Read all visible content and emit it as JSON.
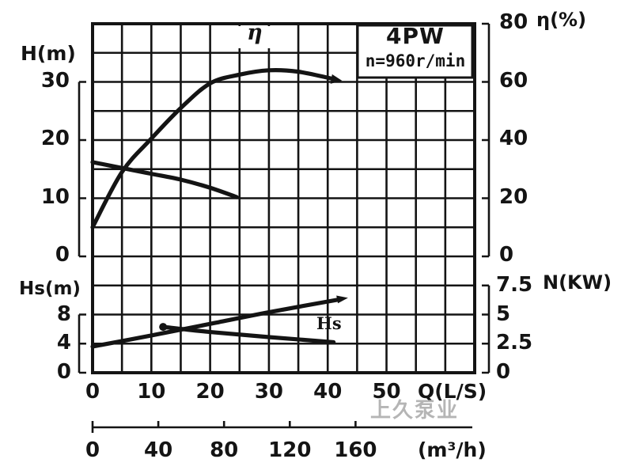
{
  "watermark": "上久泵业",
  "chart_data": {
    "type": "line",
    "title_box": {
      "model": "4PW",
      "speed": "n=960r/min"
    },
    "x_axis": {
      "label": "Q(L/S)",
      "min": 0,
      "max": 65,
      "ticks": [
        0,
        10,
        20,
        30,
        40,
        50
      ],
      "grid_step_ls": 5
    },
    "x_axis_secondary": {
      "label": "(m³/h)",
      "ticks": [
        0,
        40,
        80,
        120,
        160
      ]
    },
    "y_axis_H": {
      "label": "H(m)",
      "min": 0,
      "max": 30,
      "ticks": [
        30,
        20,
        10,
        0
      ]
    },
    "y_axis_eta": {
      "label": "η(%)",
      "min": 0,
      "max": 80,
      "ticks": [
        80,
        60,
        40,
        20,
        0
      ]
    },
    "y_axis_Hs": {
      "label": "Hs(m)",
      "min": 0,
      "max": 8,
      "ticks": [
        8,
        4,
        0
      ]
    },
    "y_axis_N": {
      "label": "N(KW)",
      "min": 0,
      "max": 7.5,
      "ticks": [
        7.5,
        5,
        2.5,
        0
      ]
    },
    "curve_labels": {
      "eta": "η",
      "hs": "Hs"
    },
    "grid": {
      "on": true,
      "columns": 13,
      "rows": 12
    },
    "series": [
      {
        "name": "H",
        "axis": "H",
        "arrow_end": false,
        "dot_start": false,
        "points": [
          [
            0,
            16.2
          ],
          [
            5,
            15.2
          ],
          [
            10,
            14.2
          ],
          [
            15,
            13.2
          ],
          [
            20,
            11.8
          ],
          [
            24.5,
            10.2
          ]
        ]
      },
      {
        "name": "eta",
        "axis": "eta",
        "arrow_end": true,
        "dot_start": false,
        "points": [
          [
            0,
            10
          ],
          [
            5,
            29
          ],
          [
            10,
            40.5
          ],
          [
            15,
            51
          ],
          [
            20,
            59.5
          ],
          [
            25,
            62.5
          ],
          [
            30,
            64
          ],
          [
            35,
            63.5
          ],
          [
            41,
            61
          ]
        ]
      },
      {
        "name": "N",
        "axis": "N",
        "arrow_end": true,
        "dot_start": false,
        "points": [
          [
            0,
            2.25
          ],
          [
            10,
            3.2
          ],
          [
            20,
            4.2
          ],
          [
            30,
            5.2
          ],
          [
            42,
            6.3
          ]
        ]
      },
      {
        "name": "Hs",
        "axis": "Hs",
        "arrow_end": false,
        "dot_start": true,
        "points": [
          [
            12,
            6.3
          ],
          [
            20,
            5.6
          ],
          [
            30,
            4.9
          ],
          [
            41,
            4.2
          ]
        ]
      }
    ]
  }
}
